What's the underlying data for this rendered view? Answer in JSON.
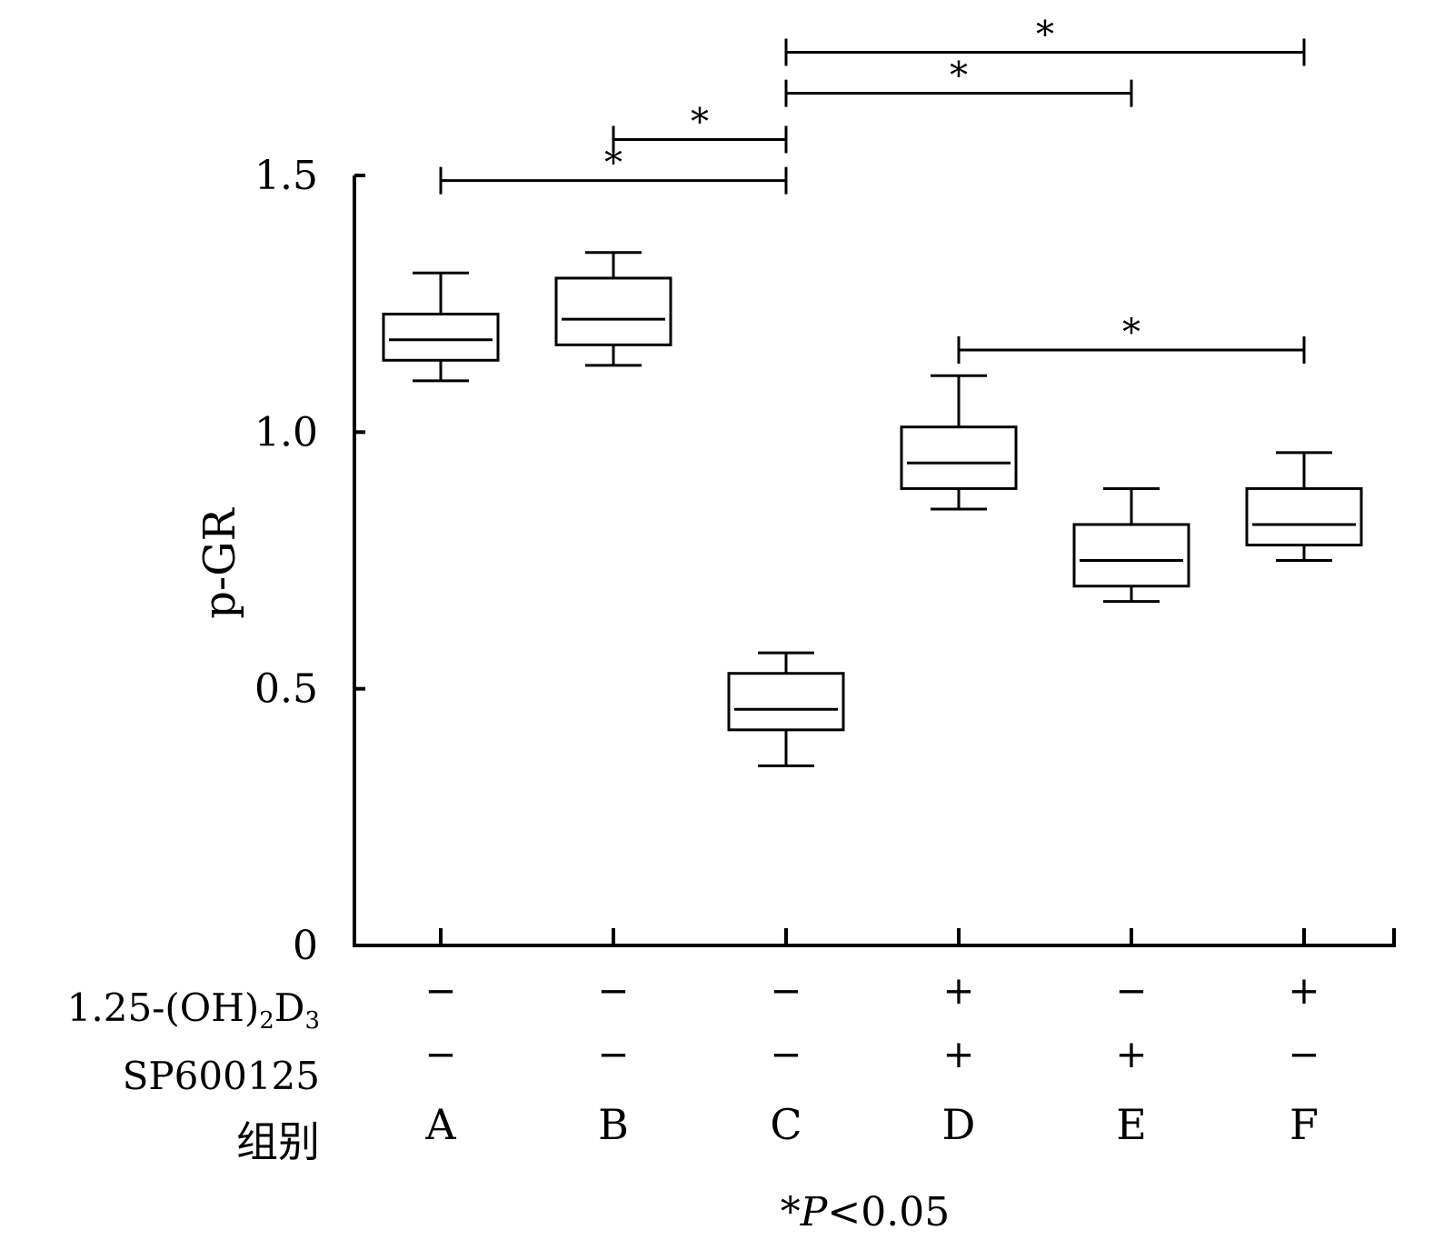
{
  "chart_data": {
    "type": "box",
    "ylabel": "p-GR",
    "ylim": [
      0,
      1.5
    ],
    "yticks": [
      {
        "value": 0,
        "label": "0"
      },
      {
        "value": 0.5,
        "label": "0.5"
      },
      {
        "value": 1.0,
        "label": "1.0"
      },
      {
        "value": 1.5,
        "label": "1.5"
      }
    ],
    "groups": [
      "A",
      "B",
      "C",
      "D",
      "E",
      "F"
    ],
    "boxes": [
      {
        "group": "A",
        "whisker_low": 1.1,
        "q1": 1.14,
        "median": 1.18,
        "q3": 1.23,
        "whisker_high": 1.31
      },
      {
        "group": "B",
        "whisker_low": 1.13,
        "q1": 1.17,
        "median": 1.22,
        "q3": 1.3,
        "whisker_high": 1.35
      },
      {
        "group": "C",
        "whisker_low": 0.35,
        "q1": 0.42,
        "median": 0.46,
        "q3": 0.53,
        "whisker_high": 0.57
      },
      {
        "group": "D",
        "whisker_low": 0.85,
        "q1": 0.89,
        "median": 0.94,
        "q3": 1.01,
        "whisker_high": 1.11
      },
      {
        "group": "E",
        "whisker_low": 0.67,
        "q1": 0.7,
        "median": 0.75,
        "q3": 0.82,
        "whisker_high": 0.89
      },
      {
        "group": "F",
        "whisker_low": 0.75,
        "q1": 0.78,
        "median": 0.82,
        "q3": 0.89,
        "whisker_high": 0.96
      }
    ],
    "significance": [
      {
        "from": "A",
        "to": "C",
        "y": 1.49,
        "mark": "*"
      },
      {
        "from": "B",
        "to": "C",
        "y": 1.57,
        "mark": "*"
      },
      {
        "from": "C",
        "to": "E",
        "y": 1.66,
        "mark": "*"
      },
      {
        "from": "C",
        "to": "F",
        "y": 1.74,
        "mark": "*"
      },
      {
        "from": "D",
        "to": "F",
        "y": 1.16,
        "mark": "*"
      }
    ],
    "conditions": [
      {
        "label": "1.25-(OH)",
        "sub1": "2",
        "mid": "D",
        "sub2": "3",
        "values": [
          "−",
          "−",
          "−",
          "+",
          "−",
          "+"
        ]
      },
      {
        "label": "SP600125",
        "values": [
          "−",
          "−",
          "−",
          "+",
          "+",
          "−"
        ]
      }
    ],
    "group_row_label": "组别",
    "footnote": {
      "star": "*",
      "p": "P",
      "rest": "<0.05"
    },
    "grid": false
  }
}
